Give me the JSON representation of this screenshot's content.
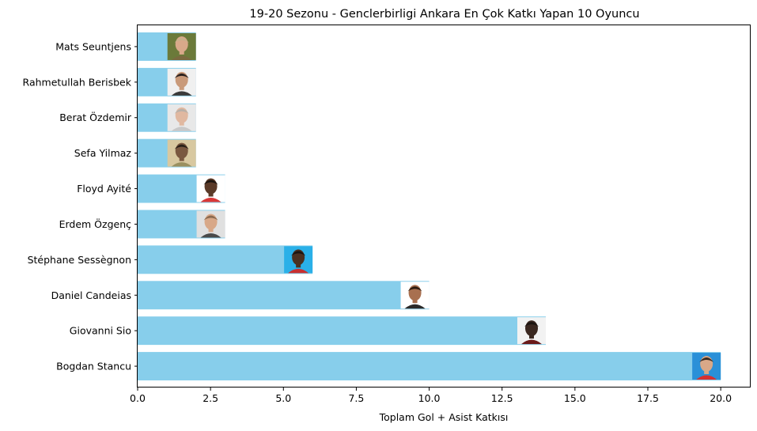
{
  "chart_data": {
    "type": "bar",
    "orientation": "horizontal",
    "title": "19-20 Sezonu - Genclerbirligi Ankara En Çok Katkı Yapan 10 Oyuncu",
    "xlabel": "Toplam Gol + Asist Katkısı",
    "ylabel": "",
    "xlim": [
      0,
      21
    ],
    "xticks": [
      "0.0",
      "2.5",
      "5.0",
      "7.5",
      "10.0",
      "12.5",
      "15.0",
      "17.5",
      "20.0"
    ],
    "categories": [
      "Mats Seuntjens",
      "Rahmetullah Berisbek",
      "Berat Özdemir",
      "Sefa Yilmaz",
      "Floyd Ayité",
      "Erdem Özgenç",
      "Stéphane Sessègnon",
      "Daniel Candeias",
      "Giovanni Sio",
      "Bogdan Stancu"
    ],
    "values": [
      2,
      2,
      2,
      2,
      3,
      3,
      6,
      10,
      14,
      20
    ],
    "bar_color": "#87ceeb",
    "photo_tones": [
      {
        "bg": "#6b7a3a",
        "skin": "#d8a98a",
        "hair": "#c9b08a",
        "shirt": "#7a6a40"
      },
      {
        "bg": "#f0f0f0",
        "skin": "#c99a7a",
        "hair": "#2a2220",
        "shirt": "#3a3a3a"
      },
      {
        "bg": "#e8e8e8",
        "skin": "#e0b8a0",
        "hair": "#b8b0a8",
        "shirt": "#c8c8c8"
      },
      {
        "bg": "#d8c8a0",
        "skin": "#7a5840",
        "hair": "#2a2018",
        "shirt": "#9a9060"
      },
      {
        "bg": "#ffffff",
        "skin": "#5a3a28",
        "hair": "#1a1410",
        "shirt": "#d83838"
      },
      {
        "bg": "#e0e0e0",
        "skin": "#d8a888",
        "hair": "#8a6a50",
        "shirt": "#4a4a4a"
      },
      {
        "bg": "#2ab0e8",
        "skin": "#4a3020",
        "hair": "#1a1410",
        "shirt": "#c83030"
      },
      {
        "bg": "#ffffff",
        "skin": "#a87050",
        "hair": "#2a1a10",
        "shirt": "#2a2a2a"
      },
      {
        "bg": "#f2f2f2",
        "skin": "#3a2820",
        "hair": "#1a1410",
        "shirt": "#6a1a1a"
      },
      {
        "bg": "#2a90d8",
        "skin": "#d8a888",
        "hair": "#3a2a20",
        "shirt": "#d83030"
      }
    ]
  }
}
